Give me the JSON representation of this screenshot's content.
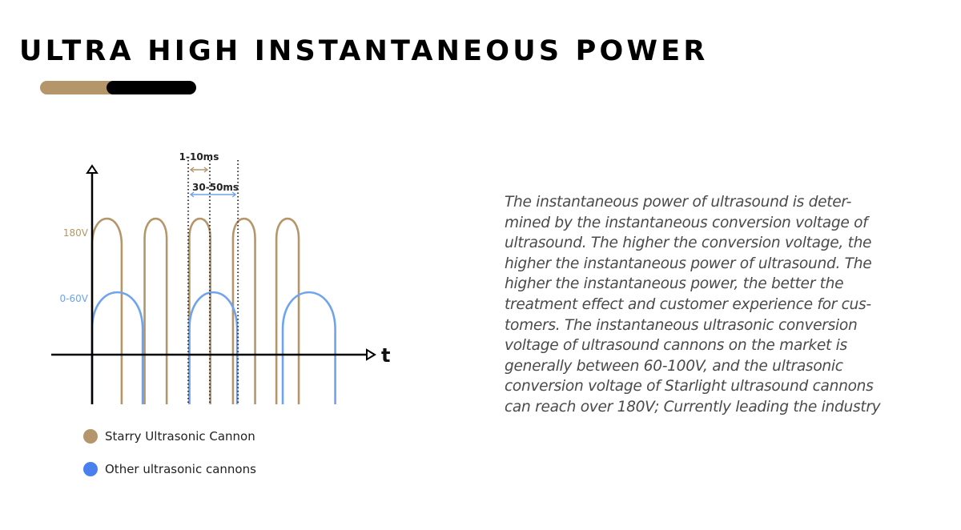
{
  "title": "ULTRA HIGH INSTANTANEOUS POWER",
  "colors": {
    "gold": "#b5966a",
    "blue": "#6fa3ee",
    "legend_blue": "#4a7ff0",
    "accent_black": "#000000"
  },
  "chart_data": {
    "type": "line",
    "xlabel": "t",
    "ylabel": "",
    "xlim": [
      0,
      100
    ],
    "y_ticks": [
      {
        "value": 180,
        "label": "180V",
        "color": "#b5966a"
      },
      {
        "value": 60,
        "label": "0-60V",
        "color": "#6fa3ee"
      }
    ],
    "series": [
      {
        "name": "Starry Ultrasonic Cannon",
        "color": "#b5966a",
        "peak": 180,
        "pulses": [
          [
            0,
            10.7
          ],
          [
            19,
            27
          ],
          [
            35.2,
            42.8
          ],
          [
            51,
            59
          ],
          [
            66.7,
            74.8
          ]
        ]
      },
      {
        "name": "Other ultrasonic cannons",
        "color": "#6fa3ee",
        "peak": 60,
        "pulses": [
          [
            0,
            18.3
          ],
          [
            35.2,
            52.5
          ],
          [
            69,
            88
          ]
        ]
      }
    ],
    "annotations": [
      {
        "label": "1-10ms",
        "from": 34.8,
        "to": 42.6,
        "color": "#b5966a"
      },
      {
        "label": "30-50ms",
        "from": 34.8,
        "to": 52.8,
        "color": "#6fa3ee"
      }
    ],
    "guides": [
      34.8,
      42.6,
      52.8
    ]
  },
  "legend": [
    {
      "label": "Starry Ultrasonic Cannon",
      "color": "#b5966a"
    },
    {
      "label": "Other ultrasonic cannons",
      "color": "#4a7ff0"
    }
  ],
  "paragraph_lines": [
    "The instantaneous power of ultrasound is deter-",
    "mined by the instantaneous conversion voltage of",
    "ultrasound. The higher the conversion voltage, the",
    "higher the instantaneous power of ultrasound. The",
    "higher the instantaneous power, the better the",
    "treatment effect and customer experience for cus-",
    "tomers. The instantaneous ultrasonic conversion",
    "voltage of ultrasound cannons on the market is",
    "generally between 60-100V, and the ultrasonic",
    "conversion voltage of Starlight ultrasound cannons",
    "can reach over 180V; Currently leading the industry"
  ]
}
